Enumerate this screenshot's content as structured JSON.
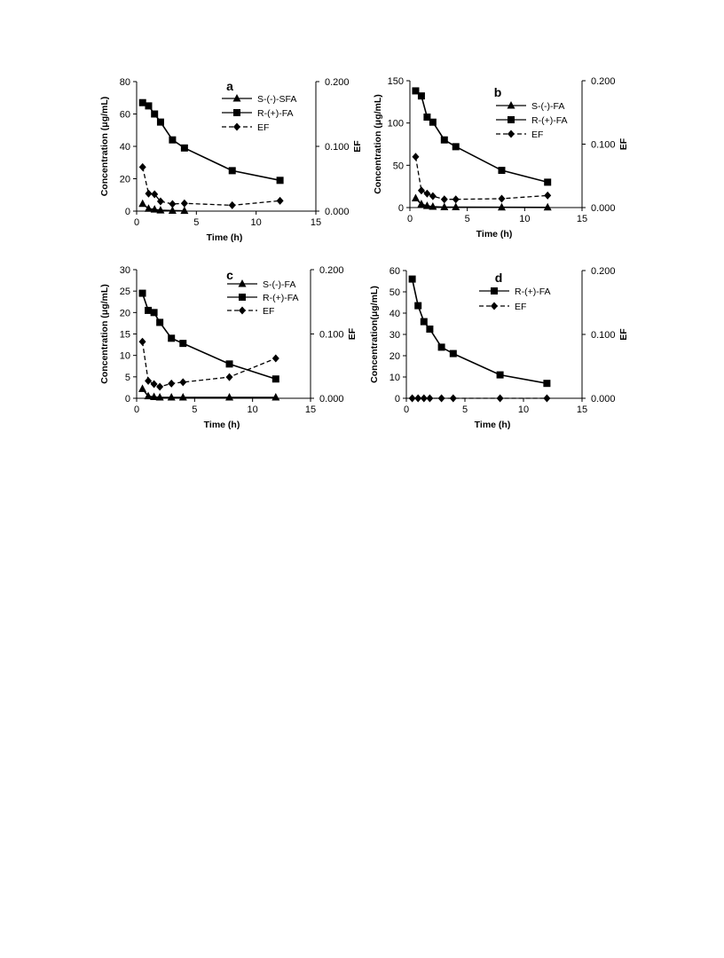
{
  "chart_data": [
    {
      "type": "line",
      "panel_label": "a",
      "xlabel": "Time (h)",
      "ylabel": "Concentration (μg/mL)",
      "y2label": "EF",
      "xlim": [
        0,
        15
      ],
      "ylim": [
        0,
        80
      ],
      "y2lim": [
        0,
        0.2
      ],
      "xticks": [
        "0",
        "5",
        "10",
        "15"
      ],
      "yticks": [
        "0",
        "20",
        "40",
        "60",
        "80"
      ],
      "y2ticks": [
        "0.000",
        "0.100",
        "0.200"
      ],
      "series": [
        {
          "name": "S-(-)-SFA",
          "axis": "left",
          "marker": "triangle",
          "dash": false,
          "x": [
            0.5,
            1,
            1.5,
            2,
            3,
            4
          ],
          "y": [
            4.5,
            1.5,
            1,
            0.5,
            0.3,
            0.2
          ]
        },
        {
          "name": "R-(+)-FA",
          "axis": "left",
          "marker": "square",
          "dash": false,
          "x": [
            0.5,
            1,
            1.5,
            2,
            3,
            4,
            8,
            12
          ],
          "y": [
            67,
            65,
            60,
            55,
            44,
            39,
            25,
            19
          ]
        },
        {
          "name": "EF",
          "axis": "right",
          "marker": "diamond",
          "dash": true,
          "x": [
            0.5,
            1,
            1.5,
            2,
            3,
            4,
            8,
            12
          ],
          "y": [
            0.068,
            0.027,
            0.026,
            0.015,
            0.011,
            0.012,
            0.009,
            0.016
          ]
        }
      ]
    },
    {
      "type": "line",
      "panel_label": "b",
      "xlabel": "Time (h)",
      "ylabel": "Concentration (μg/mL)",
      "y2label": "EF",
      "xlim": [
        0,
        15
      ],
      "ylim": [
        0,
        150
      ],
      "y2lim": [
        0,
        0.2
      ],
      "xticks": [
        "0",
        "5",
        "10",
        "15"
      ],
      "yticks": [
        "0",
        "50",
        "100",
        "150"
      ],
      "y2ticks": [
        "0.000",
        "0.100",
        "0.200"
      ],
      "series": [
        {
          "name": "S-(-)-FA",
          "axis": "left",
          "marker": "triangle",
          "dash": false,
          "x": [
            0.5,
            1,
            1.5,
            2,
            3,
            4,
            8,
            12
          ],
          "y": [
            11,
            4,
            2,
            1,
            0.5,
            0.5,
            0.3,
            0.2
          ]
        },
        {
          "name": "R-(+)-FA",
          "axis": "left",
          "marker": "square",
          "dash": false,
          "x": [
            0.5,
            1,
            1.5,
            2,
            3,
            4,
            8,
            12
          ],
          "y": [
            138,
            132,
            107,
            101,
            80,
            72,
            44,
            30
          ]
        },
        {
          "name": "EF",
          "axis": "right",
          "marker": "diamond",
          "dash": true,
          "x": [
            0.5,
            1,
            1.5,
            2,
            3,
            4,
            8,
            12
          ],
          "y": [
            0.08,
            0.027,
            0.022,
            0.018,
            0.013,
            0.013,
            0.014,
            0.019
          ]
        }
      ]
    },
    {
      "type": "line",
      "panel_label": "c",
      "xlabel": "Time (h)",
      "ylabel": "Concentration (μg/mL)",
      "y2label": "EF",
      "xlim": [
        0,
        15
      ],
      "ylim": [
        0,
        30
      ],
      "y2lim": [
        0,
        0.2
      ],
      "xticks": [
        "0",
        "5",
        "10",
        "15"
      ],
      "yticks": [
        "0",
        "5",
        "10",
        "15",
        "20",
        "25",
        "30"
      ],
      "y2ticks": [
        "0.000",
        "0.100",
        "0.200"
      ],
      "series": [
        {
          "name": "S-(-)-FA",
          "axis": "left",
          "marker": "triangle",
          "dash": false,
          "x": [
            0.5,
            1,
            1.5,
            2,
            3,
            4,
            8,
            12
          ],
          "y": [
            2.2,
            0.5,
            0.3,
            0.2,
            0.2,
            0.2,
            0.2,
            0.2
          ]
        },
        {
          "name": "R-(+)-FA",
          "axis": "left",
          "marker": "square",
          "dash": false,
          "x": [
            0.5,
            1,
            1.5,
            2,
            3,
            4,
            8,
            12
          ],
          "y": [
            24.5,
            20.5,
            20,
            17.7,
            14,
            12.8,
            8,
            4.5
          ]
        },
        {
          "name": "EF",
          "axis": "right",
          "marker": "diamond",
          "dash": true,
          "x": [
            0.5,
            1,
            1.5,
            2,
            3,
            4,
            8,
            12
          ],
          "y": [
            0.088,
            0.027,
            0.022,
            0.018,
            0.023,
            0.025,
            0.033,
            0.062
          ]
        }
      ]
    },
    {
      "type": "line",
      "panel_label": "d",
      "xlabel": "Time (h)",
      "ylabel": "Concentration(μg/mL)",
      "y2label": "EF",
      "xlim": [
        0,
        15
      ],
      "ylim": [
        0,
        60
      ],
      "y2lim": [
        0,
        0.2
      ],
      "xticks": [
        "0",
        "5",
        "10",
        "15"
      ],
      "yticks": [
        "0",
        "10",
        "20",
        "30",
        "40",
        "50",
        "60"
      ],
      "y2ticks": [
        "0.000",
        "0.100",
        "0.200"
      ],
      "series": [
        {
          "name": "R-(+)-FA",
          "axis": "left",
          "marker": "square",
          "dash": false,
          "x": [
            0.5,
            1,
            1.5,
            2,
            3,
            4,
            8,
            12
          ],
          "y": [
            56,
            43.5,
            36,
            32.5,
            24,
            21,
            11,
            7
          ]
        },
        {
          "name": "EF",
          "axis": "right",
          "marker": "diamond",
          "dash": true,
          "x": [
            0.5,
            1,
            1.5,
            2,
            3,
            4,
            8,
            12
          ],
          "y": [
            0,
            0,
            0,
            0,
            0,
            0,
            0,
            0
          ]
        }
      ]
    }
  ]
}
